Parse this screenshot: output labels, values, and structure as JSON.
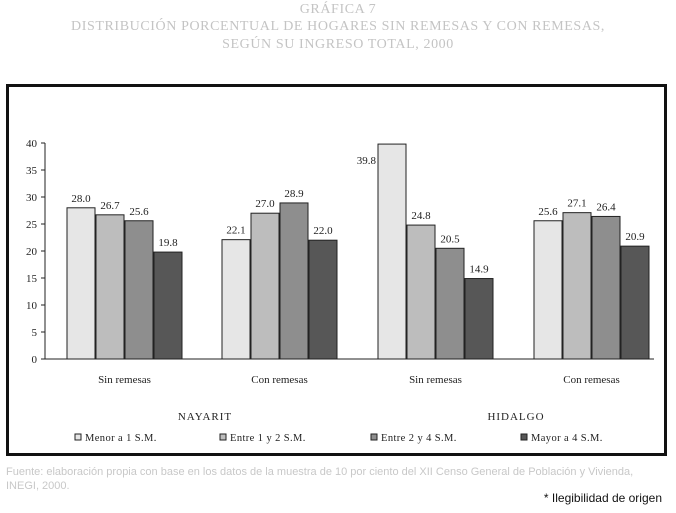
{
  "header": {
    "title_lines": [
      "GRÁFICA 7",
      "DISTRIBUCIÓN PORCENTUAL DE HOGARES SIN REMESAS Y CON REMESAS,",
      "SEGÚN SU INGRESO TOTAL, 2000"
    ]
  },
  "chart_data": {
    "type": "bar",
    "title": "DISTRIBUCIÓN PORCENTUAL DE HOGARES SIN REMESAS Y CON REMESAS, SEGÚN SU INGRESO TOTAL, 2000",
    "ylim": [
      0,
      40
    ],
    "yticks": [
      0,
      5,
      10,
      15,
      20,
      25,
      30,
      35,
      40
    ],
    "grid": false,
    "categories": [
      "Sin remesas",
      "Con remesas",
      "Sin remesas",
      "Con remesas"
    ],
    "groups": [
      "NAYARIT",
      "HIDALGO"
    ],
    "series": [
      {
        "name": "Menor a 1 S.M.",
        "color": "#e6e6e6",
        "values": [
          28.0,
          22.1,
          39.8,
          25.6
        ]
      },
      {
        "name": "Entre 1 y 2 S.M.",
        "color": "#bdbdbd",
        "values": [
          26.7,
          27.0,
          24.8,
          27.1
        ]
      },
      {
        "name": "Entre 2 y  4 S.M.",
        "color": "#8e8e8e",
        "values": [
          25.6,
          28.9,
          20.5,
          26.4
        ]
      },
      {
        "name": "Mayor a 4 S.M.",
        "color": "#575757",
        "values": [
          19.8,
          22.0,
          14.9,
          20.9
        ]
      }
    ],
    "legend_position": "bottom"
  },
  "footer": {
    "source_lines": [
      "Fuente: elaboración propia con base en los datos de la muestra de 10 por ciento del XII Censo General de Población y Vivienda,",
      "INEGI, 2000."
    ],
    "note": "* Ilegibilidad de origen"
  }
}
